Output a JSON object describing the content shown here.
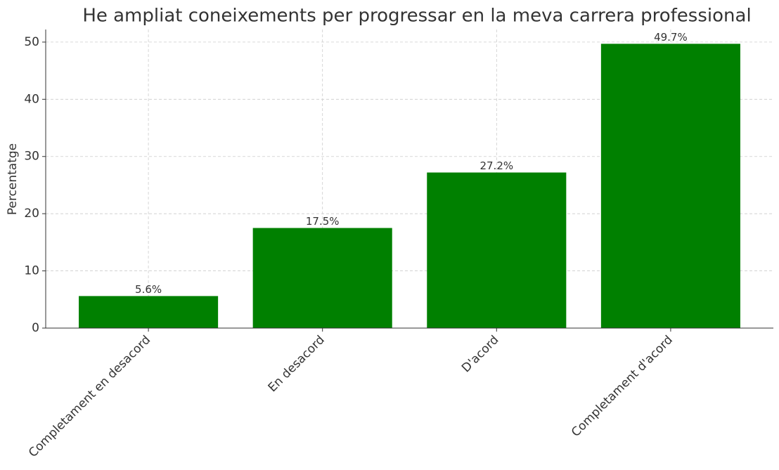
{
  "chart_data": {
    "type": "bar",
    "title": "He ampliat coneixements per progressar en la meva carrera professional",
    "y_label": "Percentatge",
    "categories": [
      "Completament en desacord",
      "En desacord",
      "D'acord",
      "Completament d'acord"
    ],
    "values": [
      5.6,
      17.5,
      27.2,
      49.7
    ],
    "value_labels": [
      "5.6%",
      "17.5%",
      "27.2%",
      "49.7%"
    ],
    "color": "#008000",
    "ylim": [
      0,
      52.2
    ],
    "yticks": [
      0,
      10,
      20,
      30,
      40,
      50
    ],
    "grid": true
  }
}
